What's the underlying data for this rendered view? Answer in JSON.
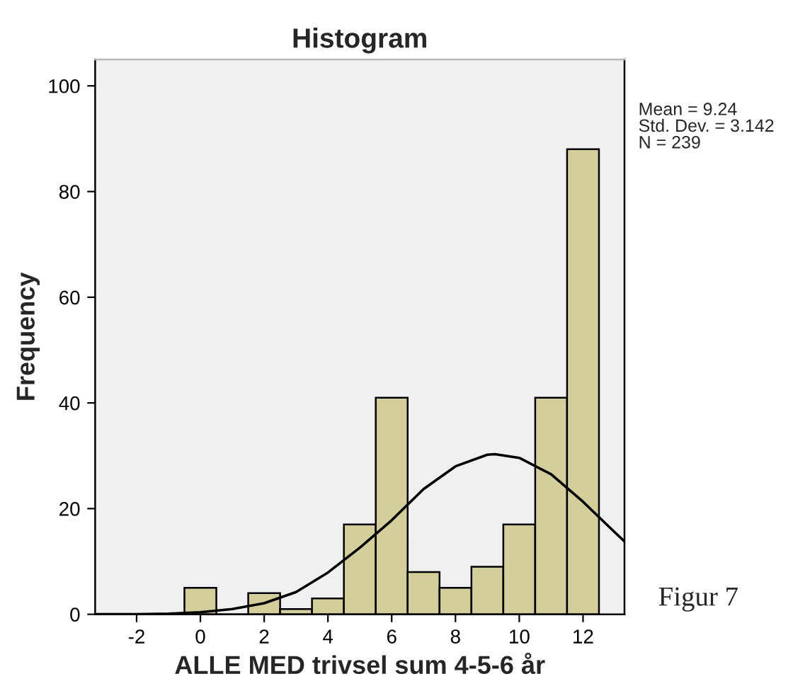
{
  "chart_data": {
    "type": "histogram",
    "title": "Histogram",
    "xlabel": "ALLE MED trivsel sum 4-5-6 år",
    "ylabel": "Frequency",
    "bins": [
      -0.5,
      0.5,
      1.5,
      2.5,
      3.5,
      4.5,
      5.5,
      6.5,
      7.5,
      8.5,
      9.5,
      10.5,
      11.5,
      12.5
    ],
    "series": [
      {
        "type": "histogram",
        "color": "#d3ce9b",
        "values": [
          5,
          0,
          4,
          1,
          3,
          17,
          41,
          8,
          5,
          9,
          17,
          41,
          88
        ]
      },
      {
        "type": "line",
        "color": "#000000",
        "x": [
          -3.3,
          -2,
          -1,
          0,
          1,
          2,
          3,
          4,
          5,
          6,
          7,
          8,
          9,
          9.24,
          10,
          11,
          12,
          13,
          13.3
        ],
        "values": [
          0.0,
          0.02,
          0.1,
          0.4,
          1.0,
          2.1,
          4.2,
          7.9,
          12.6,
          17.8,
          23.7,
          28.0,
          30.2,
          30.3,
          29.6,
          26.5,
          21.3,
          15.5,
          13.8
        ]
      }
    ],
    "xlim": [
      -3.3,
      13.3
    ],
    "ylim": [
      0,
      105
    ],
    "xticks": [
      -2,
      0,
      2,
      4,
      6,
      8,
      10,
      12
    ],
    "yticks": [
      0,
      20,
      40,
      60,
      80,
      100
    ],
    "grid": false,
    "annotations": [
      "Mean = 9.24",
      "Std. Dev. = 3.142",
      "N = 239",
      "Figur 7"
    ]
  }
}
